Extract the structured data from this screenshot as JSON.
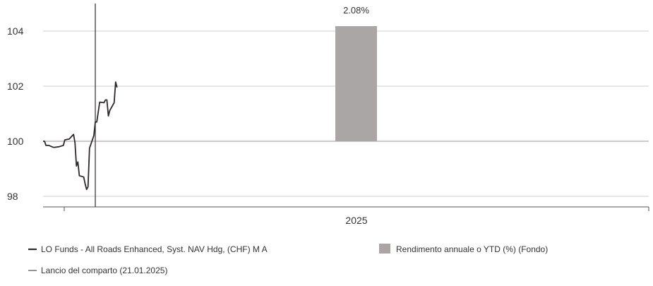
{
  "chart_data": {
    "type": "line",
    "ylim": [
      97.6,
      104.9
    ],
    "yticks": [
      98,
      100,
      102,
      104
    ],
    "ytick_labels": [
      "98",
      "100",
      "102",
      "104"
    ],
    "grid": true,
    "x_category_label": "2025",
    "series": [
      {
        "name": "LO Funds - All Roads Enhanced, Syst. NAV Hdg, (CHF) M A",
        "type": "line",
        "color": "#2f2a2a",
        "x": [
          "2024-12-16",
          "2024-12-17",
          "2024-12-18",
          "2024-12-19",
          "2024-12-20",
          "2024-12-23",
          "2024-12-24",
          "2024-12-27",
          "2024-12-30",
          "2024-12-31",
          "2025-01-02",
          "2025-01-03",
          "2025-01-06",
          "2025-01-07",
          "2025-01-08",
          "2025-01-09",
          "2025-01-10",
          "2025-01-13",
          "2025-01-14",
          "2025-01-15",
          "2025-01-16",
          "2025-01-17",
          "2025-01-20",
          "2025-01-21",
          "2025-01-22",
          "2025-01-23",
          "2025-01-24",
          "2025-01-27",
          "2025-01-28",
          "2025-01-29",
          "2025-01-30",
          "2025-01-31",
          "2025-02-03",
          "2025-02-04",
          "2025-02-05"
        ],
        "y": [
          100.0,
          100.0,
          99.85,
          99.85,
          99.85,
          99.78,
          99.78,
          99.8,
          99.85,
          100.05,
          100.07,
          100.08,
          100.25,
          99.95,
          99.1,
          99.25,
          98.75,
          98.7,
          98.45,
          98.25,
          98.35,
          99.75,
          100.2,
          100.7,
          100.7,
          101.05,
          101.42,
          101.4,
          101.5,
          101.5,
          100.92,
          101.12,
          101.4,
          102.15,
          101.95
        ]
      },
      {
        "name": "Rendimento annuale o YTD (%) (Fondo)",
        "type": "bar",
        "color": "#aaa6a6",
        "category": "2025",
        "value": 2.08,
        "data_label": "2.08%"
      }
    ],
    "event_line": {
      "x": "2025-01-21",
      "label": "Lancio del comparto (21.01.2025)"
    },
    "legend": [
      {
        "label": "LO Funds - All Roads Enhanced, Syst. NAV Hdg, (CHF) M A",
        "marker": "line",
        "color": "#2f2a2a"
      },
      {
        "label": "Rendimento annuale o YTD (%) (Fondo)",
        "marker": "square",
        "color": "#aaa6a6"
      },
      {
        "label": "Lancio del comparto (21.01.2025)",
        "marker": "line",
        "color": "#2f2a2a"
      }
    ],
    "legend_position": "bottom"
  }
}
